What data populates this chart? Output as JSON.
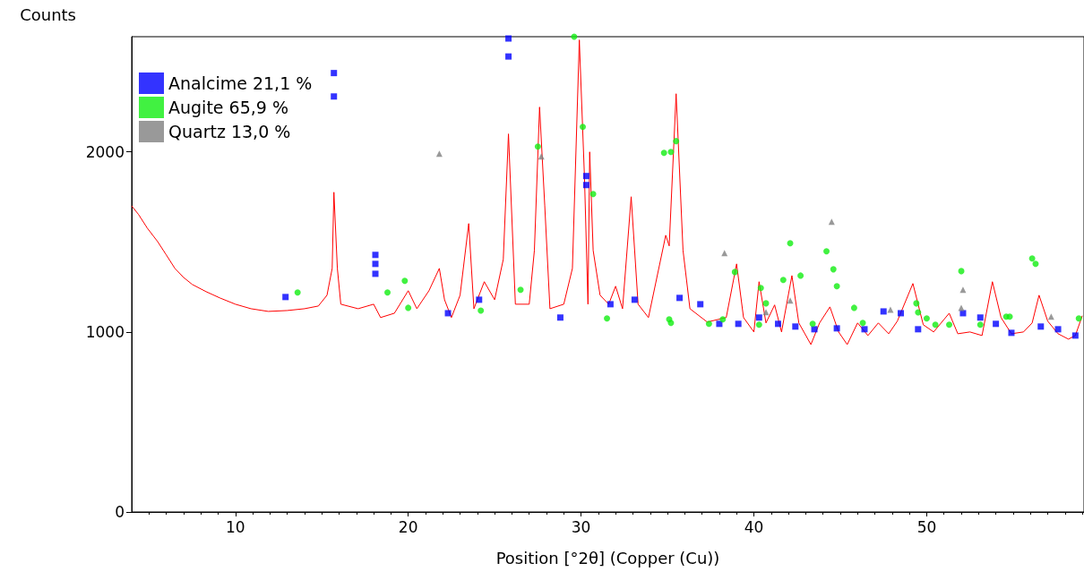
{
  "chart_data": {
    "type": "line",
    "xlabel": "Position [°2θ] (Copper (Cu))",
    "ylabel": "Counts",
    "xlim": [
      4,
      59.1
    ],
    "xticks": [
      10,
      20,
      30,
      40,
      50
    ],
    "ylim": [
      0,
      2640
    ],
    "yticks": [
      0,
      1000,
      2000
    ],
    "grid": false,
    "legend": "top left",
    "line_style": "solid",
    "series": [
      {
        "type": "line",
        "color": "#ff0000",
        "marker": "none",
        "x": [
          4.0,
          4.4,
          4.9,
          5.5,
          6.0,
          6.5,
          7.0,
          7.5,
          8.3,
          9.1,
          10.0,
          10.9,
          11.9,
          13.0,
          14.0,
          14.8,
          15.3,
          15.6,
          15.7,
          15.9,
          16.1,
          17.1,
          18.0,
          18.4,
          19.2,
          20.0,
          20.5,
          21.2,
          21.8,
          22.1,
          22.5,
          23.0,
          23.5,
          23.8,
          24.4,
          25.0,
          25.5,
          25.8,
          26.2,
          27.0,
          27.3,
          27.6,
          27.9,
          28.2,
          29.0,
          29.5,
          29.9,
          30.2,
          30.4,
          30.5,
          30.7,
          31.1,
          31.6,
          32.0,
          32.4,
          32.9,
          33.3,
          33.9,
          34.9,
          35.1,
          35.5,
          35.9,
          36.3,
          37.3,
          38.4,
          39.0,
          39.4,
          40.0,
          40.3,
          40.7,
          41.2,
          41.6,
          42.2,
          42.6,
          43.3,
          43.8,
          44.4,
          44.9,
          45.4,
          46.0,
          46.6,
          47.2,
          47.8,
          48.3,
          49.2,
          49.8,
          50.4,
          51.3,
          51.8,
          52.5,
          53.2,
          53.8,
          54.3,
          54.9,
          55.6,
          56.1,
          56.5,
          57.0,
          57.6,
          58.2,
          58.6,
          59.0
        ],
        "values": [
          1700,
          1652,
          1577,
          1502,
          1428,
          1353,
          1303,
          1264,
          1224,
          1189,
          1154,
          1129,
          1114,
          1119,
          1129,
          1144,
          1204,
          1353,
          1776,
          1353,
          1154,
          1129,
          1154,
          1080,
          1104,
          1229,
          1129,
          1229,
          1353,
          1179,
          1080,
          1204,
          1602,
          1129,
          1279,
          1179,
          1403,
          2100,
          1154,
          1154,
          1453,
          2249,
          1701,
          1129,
          1154,
          1353,
          2622,
          1851,
          1154,
          2000,
          1453,
          1204,
          1154,
          1254,
          1129,
          1751,
          1154,
          1080,
          1537,
          1478,
          2323,
          1453,
          1129,
          1055,
          1080,
          1378,
          1080,
          1000,
          1279,
          1050,
          1150,
          1000,
          1313,
          1050,
          930,
          1050,
          1139,
          1000,
          930,
          1050,
          980,
          1050,
          990,
          1060,
          1269,
          1040,
          1000,
          1104,
          990,
          1000,
          980,
          1279,
          1080,
          990,
          1000,
          1050,
          1204,
          1060,
          990,
          960,
          980,
          1090
        ]
      },
      {
        "type": "scatter",
        "name": "Analcime 21,1 %",
        "color": "#0000ff",
        "marker": "square",
        "x": [
          12.9,
          15.7,
          15.7,
          18.1,
          18.1,
          18.1,
          22.3,
          24.1,
          25.8,
          25.8,
          28.8,
          30.3,
          30.3,
          31.7,
          33.1,
          35.7,
          36.9,
          38.0,
          39.1,
          40.3,
          41.4,
          42.4,
          43.5,
          44.8,
          46.4,
          47.5,
          48.5,
          49.5,
          52.1,
          53.1,
          54.0,
          54.9,
          56.6,
          57.6,
          58.6
        ],
        "values": [
          1194,
          2438,
          2308,
          1428,
          1378,
          1323,
          1104,
          1179,
          2630,
          2530,
          1080,
          1866,
          1816,
          1154,
          1179,
          1189,
          1154,
          1045,
          1045,
          1080,
          1045,
          1030,
          1015,
          1020,
          1015,
          1114,
          1104,
          1015,
          1104,
          1080,
          1045,
          995,
          1030,
          1015,
          980
        ]
      },
      {
        "type": "scatter",
        "name": "Augite 65,9 %",
        "color": "#11ee11",
        "marker": "circle",
        "x": [
          13.6,
          18.8,
          19.8,
          20.0,
          24.2,
          26.5,
          27.5,
          29.6,
          30.1,
          30.7,
          31.5,
          34.8,
          35.1,
          35.2,
          35.2,
          35.5,
          37.4,
          38.2,
          38.9,
          40.3,
          40.4,
          40.7,
          41.7,
          42.1,
          42.7,
          43.4,
          44.2,
          44.6,
          44.8,
          45.8,
          46.3,
          49.4,
          49.5,
          50.0,
          50.5,
          51.3,
          52.0,
          53.1,
          54.6,
          54.8,
          56.1,
          56.3,
          58.8
        ],
        "values": [
          1219,
          1219,
          1284,
          1134,
          1119,
          1234,
          2030,
          2640,
          2139,
          1766,
          1075,
          1995,
          1070,
          2000,
          1050,
          2060,
          1045,
          1070,
          1333,
          1040,
          1244,
          1159,
          1289,
          1493,
          1313,
          1045,
          1448,
          1348,
          1254,
          1134,
          1050,
          1159,
          1109,
          1075,
          1040,
          1040,
          1338,
          1040,
          1085,
          1085,
          1408,
          1378,
          1075
        ]
      },
      {
        "type": "scatter",
        "name": "Quartz 13,0 %",
        "color": "#808080",
        "marker": "triangle",
        "x": [
          21.8,
          27.7,
          38.3,
          40.7,
          42.1,
          44.5,
          47.9,
          52.0,
          52.1,
          57.2
        ],
        "values": [
          1990,
          1975,
          1438,
          1110,
          1174,
          1612,
          1124,
          1134,
          1234,
          1085
        ]
      }
    ]
  }
}
